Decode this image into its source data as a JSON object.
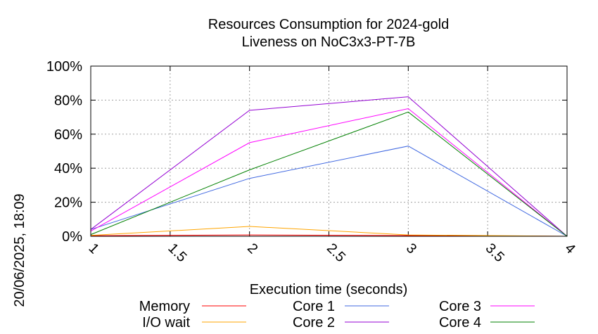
{
  "chart_data": {
    "type": "line",
    "title": [
      "Resources Consumption for 2024-gold",
      "Liveness on NoC3x3-PT-7B"
    ],
    "xlabel": "Execution time (seconds)",
    "ylabel": "",
    "side_label": "20/06/2025, 18:09",
    "xlim": [
      1,
      4
    ],
    "ylim": [
      0,
      100
    ],
    "xticks": [
      "1",
      "1.5",
      "2",
      "2.5",
      "3",
      "3.5",
      "4"
    ],
    "yticks": [
      "0%",
      "20%",
      "40%",
      "60%",
      "80%",
      "100%"
    ],
    "grid": true,
    "legend_position": "bottom",
    "series": [
      {
        "name": "Memory",
        "color": "#ff0000",
        "x": [
          1,
          2,
          3,
          4
        ],
        "y": [
          0.3,
          0.8,
          0.4,
          0
        ]
      },
      {
        "name": "I/O wait",
        "color": "#ffa500",
        "x": [
          1,
          2,
          3,
          4
        ],
        "y": [
          0.5,
          5.8,
          0.8,
          0
        ]
      },
      {
        "name": "Core 1",
        "color": "#4169e1",
        "x": [
          1,
          2,
          3,
          4
        ],
        "y": [
          4,
          34,
          53,
          0
        ]
      },
      {
        "name": "Core 2",
        "color": "#9400d3",
        "x": [
          1,
          2,
          3,
          4
        ],
        "y": [
          4,
          74,
          82,
          0
        ]
      },
      {
        "name": "Core 3",
        "color": "#ff00ff",
        "x": [
          1,
          2,
          3,
          4
        ],
        "y": [
          3,
          55,
          75,
          0
        ]
      },
      {
        "name": "Core 4",
        "color": "#008000",
        "x": [
          1,
          2,
          3,
          4
        ],
        "y": [
          1,
          39,
          73,
          0
        ]
      }
    ]
  }
}
